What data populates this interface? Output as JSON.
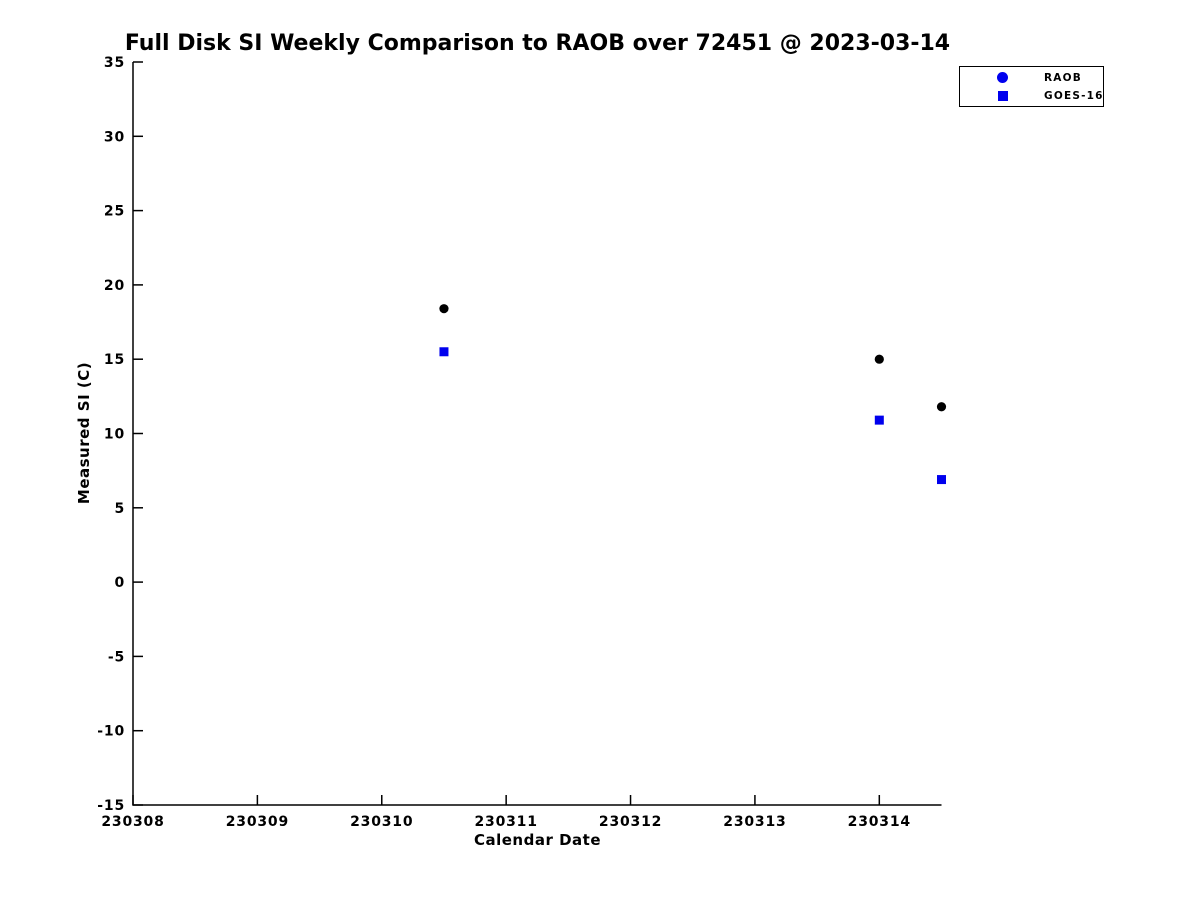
{
  "figure": {
    "background_color": "#ffffff",
    "text_color": "#000000"
  },
  "chart_data": {
    "type": "scatter",
    "title": "Full Disk SI Weekly Comparison to RAOB over 72451 @ 2023-03-14",
    "xlabel": "Calendar Date",
    "ylabel": "Measured SI (C)",
    "xlim": [
      230308,
      230314.5
    ],
    "ylim": [
      -15,
      35
    ],
    "x_ticks": [
      "230308",
      "230309",
      "230310",
      "230311",
      "230312",
      "230313",
      "230314"
    ],
    "x_tick_values": [
      230308,
      230309,
      230310,
      230311,
      230312,
      230313,
      230314
    ],
    "y_ticks": [
      "-15",
      "-10",
      "-5",
      "0",
      "5",
      "10",
      "15",
      "20",
      "25",
      "30",
      "35"
    ],
    "y_tick_values": [
      -15,
      -10,
      -5,
      0,
      5,
      10,
      15,
      20,
      25,
      30,
      35
    ],
    "grid": false,
    "axis_color": "#000000",
    "legend_position": "top-right-outside",
    "series": [
      {
        "name": "RAOB",
        "marker": "circle",
        "plot_color": "#000000",
        "legend_color": "#0000ee",
        "points": [
          {
            "x": 230310.5,
            "y": 18.4
          },
          {
            "x": 230314.0,
            "y": 15.0
          },
          {
            "x": 230314.5,
            "y": 11.8
          }
        ]
      },
      {
        "name": "GOES-16",
        "marker": "square",
        "plot_color": "#0000ee",
        "legend_color": "#0000ee",
        "points": [
          {
            "x": 230310.5,
            "y": 15.5
          },
          {
            "x": 230314.0,
            "y": 10.9
          },
          {
            "x": 230314.5,
            "y": 6.9
          }
        ]
      }
    ]
  }
}
